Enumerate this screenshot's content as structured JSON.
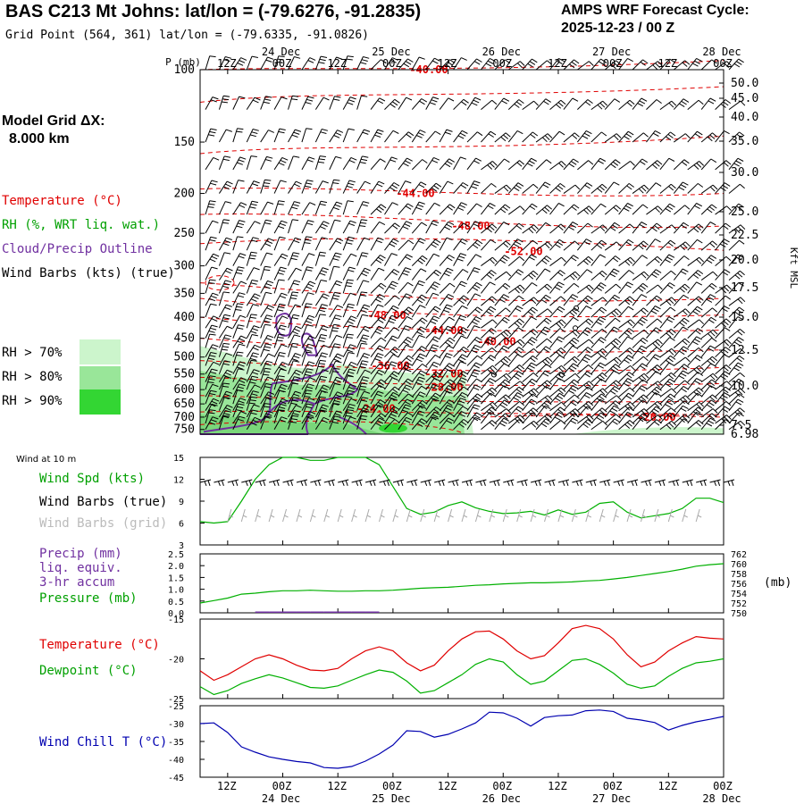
{
  "header": {
    "title": "BAS C213 Mt Johns:  lat/lon = (-79.6276, -91.2835)",
    "subtitle": "Grid Point (564, 361) lat/lon = (-79.6335, -91.0826)",
    "cycle_line1": "AMPS WRF Forecast Cycle:",
    "cycle_line2": "2025-12-23 / 00  Z"
  },
  "model_grid": {
    "label": "Model Grid ΔX:",
    "value": "8.000 km"
  },
  "legend_upper": {
    "temperature": "Temperature (°C)",
    "rh": "RH (%, WRT liq. wat.)",
    "cloud": "Cloud/Precip Outline",
    "barbs": "Wind Barbs (kts) (true)",
    "rh_levels": [
      {
        "label": "RH > 70%",
        "color": "#ccf5cc"
      },
      {
        "label": "RH > 80%",
        "color": "#99e699"
      },
      {
        "label": "RH > 90%",
        "color": "#33d633"
      }
    ]
  },
  "legend_wind": {
    "header": "Wind at 10 m",
    "spd": "Wind Spd (kts)",
    "true": "Wind Barbs (true)",
    "grid": "Wind Barbs (grid)"
  },
  "legend_precip": {
    "precip": "Precip (mm)",
    "liq": "liq. equiv.",
    "accum": "3-hr accum",
    "pressure": "Pressure (mb)"
  },
  "legend_temp": {
    "temp": "Temperature (°C)",
    "dew": "Dewpoint (°C)"
  },
  "legend_wc": {
    "wc": "Wind Chill T (°C)"
  },
  "colors": {
    "temp": "#e00000",
    "rh": "#00c000",
    "cloud": "#7030a0",
    "wc": "#0000b0",
    "barb": "#000000",
    "gridbarb": "#aaaaaa"
  },
  "chart_data": [
    {
      "type": "time-height cross section",
      "time_ticks": [
        "12Z",
        "00Z",
        "12Z",
        "00Z",
        "12Z",
        "00Z",
        "12Z",
        "00Z",
        "12Z",
        "00Z"
      ],
      "date_labels": [
        "24 Dec",
        "25 Dec",
        "26 Dec",
        "27 Dec",
        "28 Dec"
      ],
      "ylabel": "P (mb)",
      "pressure_ticks": [
        "100",
        "150",
        "200",
        "250",
        "300",
        "350",
        "400",
        "450",
        "500",
        "550",
        "600",
        "650",
        "700",
        "750"
      ],
      "right_label": "Kft MSL",
      "height_ticks": [
        "50.0",
        "45.0",
        "40.0",
        "35.0",
        "30.0",
        "25.0",
        "22.5",
        "20.0",
        "17.5",
        "15.0",
        "12.5",
        "10.0",
        "7.5",
        "6.98"
      ],
      "isotherm_labels": [
        "-40.00",
        "-44.00",
        "-48.00",
        "-52.00",
        "-48.00",
        "-44.00",
        "-40.00",
        "-36.00",
        "-32.00",
        "-28.00",
        "-24.00",
        "-20.00"
      ]
    },
    {
      "type": "line",
      "title": "Wind at 10 m",
      "ylabel": "Wind Spd (kts)",
      "ylim": [
        3,
        15
      ],
      "y_ticks": [
        "15",
        "12",
        "9",
        "6",
        "3"
      ],
      "values": [
        6.2,
        6,
        6.2,
        9,
        12,
        14,
        15,
        15,
        14.6,
        14.6,
        15,
        15,
        15,
        14,
        11,
        8,
        7.2,
        7.5,
        8.4,
        8.9,
        8.1,
        7.6,
        7.3,
        7.4,
        7.6,
        7.1,
        7.8,
        7.2,
        7.5,
        8.7,
        8.9,
        7.5,
        6.7,
        7,
        7.3,
        8,
        9.4,
        9.4,
        8.8
      ]
    },
    {
      "type": "line+bar",
      "ylabel_left": "Precip (mm)",
      "ylabel_right": "(mb)",
      "ylim_left": [
        0,
        2.5
      ],
      "ylim_right": [
        750,
        762
      ],
      "y_ticks_left": [
        "2.5",
        "2.0",
        "1.5",
        "1.0",
        "0.5",
        "0.0"
      ],
      "y_ticks_right": [
        "762",
        "760",
        "758",
        "756",
        "754",
        "752",
        "750"
      ],
      "pressure": [
        752,
        752.5,
        753,
        753.8,
        754,
        754.3,
        754.5,
        754.5,
        754.6,
        754.5,
        754.4,
        754.4,
        754.5,
        754.5,
        754.6,
        754.8,
        755,
        755.1,
        755.2,
        755.4,
        755.6,
        755.7,
        755.9,
        756,
        756.1,
        756.1,
        756.2,
        756.3,
        756.5,
        756.6,
        756.9,
        757.2,
        757.6,
        758,
        758.4,
        758.9,
        759.5,
        759.8,
        760
      ],
      "precip": [
        0,
        0,
        0,
        0,
        0.03,
        0.05,
        0.04,
        0.04,
        0.03,
        0.03,
        0.02,
        0.02,
        0.01,
        0,
        0,
        0,
        0,
        0,
        0,
        0,
        0,
        0,
        0,
        0,
        0,
        0,
        0,
        0,
        0,
        0,
        0,
        0,
        0,
        0,
        0,
        0,
        0,
        0,
        0
      ]
    },
    {
      "type": "line",
      "ylim": [
        -25,
        -15
      ],
      "y_ticks": [
        "-15",
        "-20",
        "-25"
      ],
      "series": [
        {
          "name": "Temperature (°C)",
          "values": [
            -21.5,
            -22.7,
            -22,
            -21,
            -20,
            -19.5,
            -20,
            -20.8,
            -21.4,
            -21.5,
            -21.2,
            -20,
            -19,
            -18.5,
            -19,
            -20.5,
            -21.5,
            -20.8,
            -19,
            -17.5,
            -16.6,
            -16.5,
            -17.5,
            -19,
            -20,
            -19.6,
            -18,
            -16.2,
            -15.8,
            -16.2,
            -17.5,
            -19.5,
            -21,
            -20.4,
            -19,
            -18,
            -17.2,
            -17.4,
            -17.5
          ]
        },
        {
          "name": "Dewpoint (°C)",
          "values": [
            -23.5,
            -24.5,
            -24,
            -23.1,
            -22.5,
            -22,
            -22.4,
            -23,
            -23.6,
            -23.7,
            -23.4,
            -22.7,
            -22,
            -21.4,
            -21.7,
            -22.8,
            -24.3,
            -24,
            -23,
            -22,
            -20.7,
            -20,
            -20.4,
            -22,
            -23.2,
            -22.8,
            -21.5,
            -20.2,
            -20,
            -20.7,
            -21.8,
            -23.2,
            -23.7,
            -23.4,
            -22.2,
            -21.2,
            -20.5,
            -20.3,
            -20
          ]
        }
      ]
    },
    {
      "type": "line",
      "ylim": [
        -45,
        -25
      ],
      "y_ticks": [
        "-25",
        "-30",
        "-35",
        "-40",
        "-45"
      ],
      "series": [
        {
          "name": "Wind Chill T (°C)",
          "values": [
            -30,
            -29.8,
            -32.5,
            -36.5,
            -38,
            -39.3,
            -40,
            -40.6,
            -41,
            -42.3,
            -42.5,
            -42,
            -40.5,
            -38.5,
            -36,
            -32,
            -32.2,
            -33.8,
            -33,
            -31.5,
            -29.8,
            -26.8,
            -27,
            -28.5,
            -30.7,
            -28.3,
            -27.8,
            -27.6,
            -26.4,
            -26.2,
            -26.6,
            -28.5,
            -29,
            -29.7,
            -31.8,
            -30.5,
            -29.5,
            -28.8,
            -28
          ]
        }
      ]
    }
  ]
}
